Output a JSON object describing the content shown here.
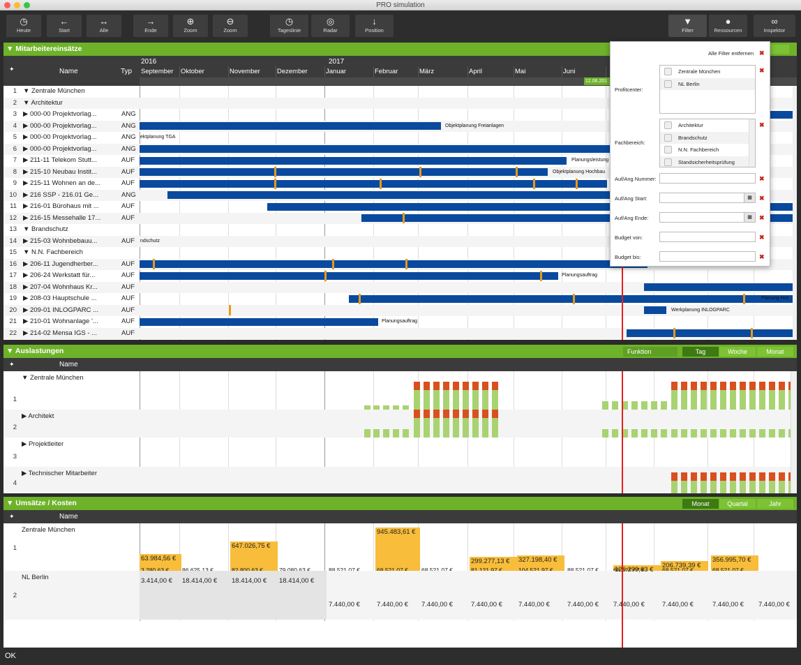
{
  "window": {
    "title": "PRO simulation"
  },
  "toolbar": {
    "left": [
      {
        "label": "Heute",
        "icon": "clock-icon",
        "glyph": "◷"
      },
      {
        "label": "Start",
        "icon": "arrow-left-icon",
        "glyph": "←"
      },
      {
        "label": "Alle",
        "icon": "arrows-horizontal-icon",
        "glyph": "↔"
      },
      {
        "label": "Ende",
        "icon": "arrow-right-icon",
        "glyph": "→"
      },
      {
        "label": "Zoom",
        "icon": "zoom-in-icon",
        "glyph": "⊕"
      },
      {
        "label": "Zoom",
        "icon": "zoom-out-icon",
        "glyph": "⊖"
      },
      {
        "label": "Tageslinie",
        "icon": "clock-icon",
        "glyph": "◷"
      },
      {
        "label": "Radar",
        "icon": "radar-icon",
        "glyph": "◎"
      },
      {
        "label": "Position",
        "icon": "arrow-down-icon",
        "glyph": "↓"
      }
    ],
    "right": [
      {
        "label": "Filter",
        "icon": "filter-icon",
        "glyph": "▼"
      },
      {
        "label": "Ressourcen",
        "icon": "person-icon",
        "glyph": "●"
      },
      {
        "label": "Inspektor",
        "icon": "binoculars-icon",
        "glyph": "∞"
      }
    ]
  },
  "gantt": {
    "title": "▼ Mitarbeitereinsätze",
    "col_name": "Name",
    "col_type": "Typ",
    "year_2016": "2016",
    "year_2017": "2017",
    "months": [
      "September",
      "Oktober",
      "November",
      "Dezember",
      "Januar",
      "Februar",
      "März",
      "April",
      "Mai",
      "Juni",
      "",
      "",
      "",
      "ober"
    ],
    "today_label": "12.06.201",
    "currency_tag": "€",
    "rows": [
      {
        "n": "1",
        "name": "▼  Zentrale München",
        "typ": ""
      },
      {
        "n": "2",
        "name": "    ▼  Architektur",
        "typ": ""
      },
      {
        "n": "3",
        "name": "        ▶  000-00 Projektvorlag...",
        "typ": "ANG"
      },
      {
        "n": "4",
        "name": "        ▶  000-00 Projektvorlag...",
        "typ": "ANG"
      },
      {
        "n": "5",
        "name": "        ▶  000-00 Projektvorlag...",
        "typ": "ANG"
      },
      {
        "n": "6",
        "name": "        ▶  000-00 Projektvorlag...",
        "typ": "ANG"
      },
      {
        "n": "7",
        "name": "        ▶  211-11 Telekom Stutt...",
        "typ": "AUF"
      },
      {
        "n": "8",
        "name": "        ▶  215-10 Neubau Instit...",
        "typ": "AUF"
      },
      {
        "n": "9",
        "name": "        ▶  215-11 Wohnen an de...",
        "typ": "AUF"
      },
      {
        "n": "10",
        "name": "        ▶  216 SSP - 216.01 Ge...",
        "typ": "ANG"
      },
      {
        "n": "11",
        "name": "        ▶  216-01 Bürohaus mit ...",
        "typ": "AUF"
      },
      {
        "n": "12",
        "name": "        ▶  216-15 Messehalle 17...",
        "typ": "AUF"
      },
      {
        "n": "13",
        "name": "    ▼  Brandschutz",
        "typ": ""
      },
      {
        "n": "14",
        "name": "        ▶  215-03 Wohnbebauu...",
        "typ": "AUF"
      },
      {
        "n": "15",
        "name": "    ▼  N.N. Fachbereich",
        "typ": ""
      },
      {
        "n": "16",
        "name": "        ▶  206-11 Jugendherber...",
        "typ": "AUF"
      },
      {
        "n": "17",
        "name": "        ▶  206-24 Werkstatt für...",
        "typ": "AUF"
      },
      {
        "n": "18",
        "name": "        ▶  207-04 Wohnhaus Kr...",
        "typ": "AUF"
      },
      {
        "n": "19",
        "name": "        ▶  208-03 Hauptschule ...",
        "typ": "AUF"
      },
      {
        "n": "20",
        "name": "        ▶  209-01 INLOGPARC ...",
        "typ": "AUF"
      },
      {
        "n": "21",
        "name": "        ▶  210-01 Wohnanlage '...",
        "typ": "AUF"
      },
      {
        "n": "22",
        "name": "        ▶  214-02 Mensa IGS - ...",
        "typ": "AUF"
      }
    ],
    "bar_labels": {
      "r4": "Objektplanung Freianlagen",
      "r5": "ektplanung TGA",
      "r7": "Planungsleistung",
      "r8": "Objektplanung Hochbau",
      "r14": "ndschutz",
      "r17": "Planungsauftrag",
      "r19": "Planung Hoc",
      "r20": "Werkplanung INLOGPARC",
      "r21": "Planungsauftrag"
    }
  },
  "load": {
    "title": "▼ Auslastungen",
    "col_name": "Name",
    "funktion": "Funktion",
    "tabs": [
      "Tag",
      "Woche",
      "Monat"
    ],
    "rows": [
      {
        "n": "1",
        "name": "▼  Zentrale München"
      },
      {
        "n": "2",
        "name": "    ▶  Architekt"
      },
      {
        "n": "3",
        "name": "    ▶  Projektleiter"
      },
      {
        "n": "4",
        "name": "    ▶  Technischer Mitarbeiter"
      }
    ]
  },
  "costs": {
    "title": "▼ Umsätze / Kosten",
    "col_name": "Name",
    "tabs": [
      "Monat",
      "Quartal",
      "Jahr"
    ],
    "rows": [
      {
        "n": "1",
        "name": "Zentrale München"
      },
      {
        "n": "2",
        "name": "NL Berlin"
      }
    ],
    "zm_top": [
      "63.984,56 €",
      "647.026,75 €",
      "945.483,61 €",
      "299.277,13 €",
      "327.198,40 €",
      "206.739,39 €",
      "356.995,70 €",
      "125.299,63 €"
    ],
    "zm_bottom": [
      "3.280,63 €",
      "86.625,13 €",
      "82.800,63 €",
      "79.080,63 €",
      "88.521,07 €",
      "68.521,07 €",
      "68.521,07 €",
      "81.121,97 €",
      "104.521,97 €",
      "88.521,07 €",
      "68.521,07 €",
      "68.521,07 €",
      "68.521,07 €"
    ],
    "berlin_top": [
      "3.414,00 €",
      "18.414,00 €",
      "18.414,00 €",
      "18.414,00 €"
    ],
    "berlin_bottom": [
      "7.440,00 €",
      "7.440,00 €",
      "7.440,00 €",
      "7.440,00 €",
      "7.440,00 €",
      "7.440,00 €",
      "7.440,00 €",
      "7.440,00 €",
      "7.440,00 €",
      "7.440,00 €"
    ]
  },
  "filter": {
    "clear_all": "Alle Filter entfernen",
    "profitcenter_label": "Profitcenter:",
    "profitcenter_items": [
      "Zentrale München",
      "NL Berlin"
    ],
    "fachbereich_label": "Fachbereich:",
    "fachbereich_items": [
      "Architektur",
      "Brandschutz",
      "N.N. Fachbereich",
      "Standsicherheitsprüfung"
    ],
    "nummer_label": "Auf/Ang Nummer:",
    "start_label": "Auf/Ang Start:",
    "ende_label": "Auf/Ang Ende:",
    "budget_von_label": "Budget von:",
    "budget_bis_label": "Budget bis:"
  },
  "status": {
    "text": "OK"
  }
}
